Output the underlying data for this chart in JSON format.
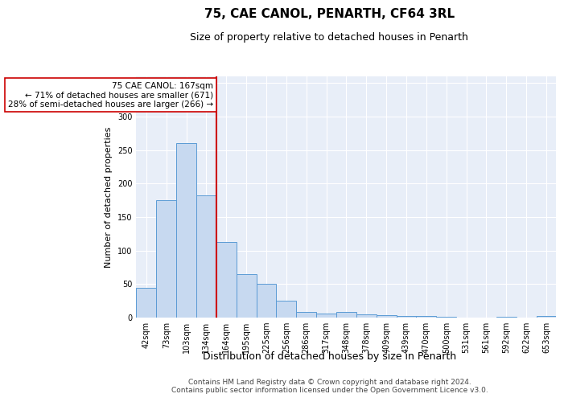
{
  "title": "75, CAE CANOL, PENARTH, CF64 3RL",
  "subtitle": "Size of property relative to detached houses in Penarth",
  "xlabel": "Distribution of detached houses by size in Penarth",
  "ylabel": "Number of detached properties",
  "categories": [
    "42sqm",
    "73sqm",
    "103sqm",
    "134sqm",
    "164sqm",
    "195sqm",
    "225sqm",
    "256sqm",
    "286sqm",
    "317sqm",
    "348sqm",
    "378sqm",
    "409sqm",
    "439sqm",
    "470sqm",
    "500sqm",
    "531sqm",
    "561sqm",
    "592sqm",
    "622sqm",
    "653sqm"
  ],
  "values": [
    44,
    175,
    261,
    183,
    113,
    65,
    50,
    25,
    8,
    6,
    8,
    5,
    4,
    3,
    2,
    1,
    0,
    0,
    1,
    0,
    2
  ],
  "bar_color": "#c7d9f0",
  "bar_edge_color": "#5b9bd5",
  "vline_index": 4,
  "vline_color": "#cc0000",
  "annotation_text": "75 CAE CANOL: 167sqm\n← 71% of detached houses are smaller (671)\n28% of semi-detached houses are larger (266) →",
  "annotation_box_color": "#ffffff",
  "annotation_box_edge_color": "#cc0000",
  "ylim": [
    0,
    360
  ],
  "yticks": [
    0,
    50,
    100,
    150,
    200,
    250,
    300,
    350
  ],
  "background_color": "#e8eef8",
  "grid_color": "#ffffff",
  "footer": "Contains HM Land Registry data © Crown copyright and database right 2024.\nContains public sector information licensed under the Open Government Licence v3.0.",
  "title_fontsize": 11,
  "subtitle_fontsize": 9,
  "xlabel_fontsize": 9,
  "ylabel_fontsize": 8,
  "tick_fontsize": 7,
  "footer_fontsize": 6.5,
  "annotation_fontsize": 7.5
}
